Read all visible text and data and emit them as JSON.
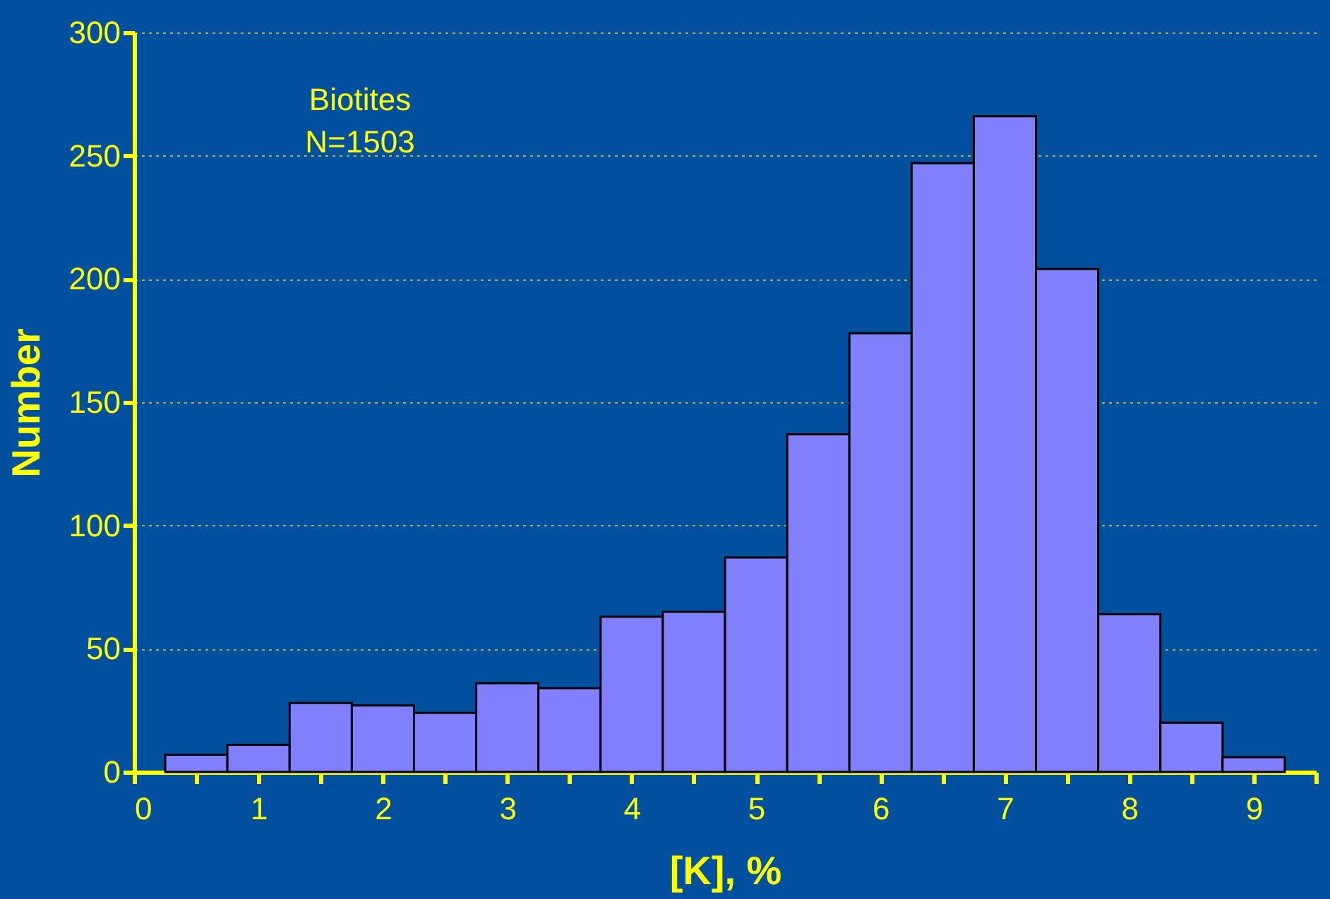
{
  "chart_data": {
    "type": "histogram",
    "xlabel": "[K], %",
    "ylabel": "Number",
    "annotations": [
      "Biotites\nN=1503"
    ],
    "bins": [
      0.25,
      0.75,
      1.25,
      1.75,
      2.25,
      2.75,
      3.25,
      3.75,
      4.25,
      4.75,
      5.25,
      5.75,
      6.25,
      6.75,
      7.25,
      7.75,
      8.25,
      8.75,
      9.25
    ],
    "values": [
      7,
      11,
      28,
      27,
      24,
      36,
      34,
      63,
      65,
      87,
      137,
      178,
      247,
      266,
      204,
      64,
      20,
      6
    ],
    "color": "#8080ff",
    "xlim": [
      0,
      9.5
    ],
    "xticks": [
      0,
      {
        "value": 0.5,
        "label": null
      },
      1,
      {
        "value": 1.5,
        "label": null
      },
      2,
      {
        "value": 2.5,
        "label": null
      },
      3,
      {
        "value": 3.5,
        "label": null
      },
      4,
      {
        "value": 4.5,
        "label": null
      },
      5,
      {
        "value": 5.5,
        "label": null
      },
      6,
      {
        "value": 6.5,
        "label": null
      },
      7,
      {
        "value": 7.5,
        "label": null
      },
      8,
      {
        "value": 8.5,
        "label": null
      },
      9,
      {
        "value": 9.5,
        "label": null
      }
    ],
    "ylim": [
      0,
      300
    ],
    "yticks": [
      0,
      50,
      100,
      150,
      200,
      250,
      300
    ],
    "grid": "y"
  }
}
